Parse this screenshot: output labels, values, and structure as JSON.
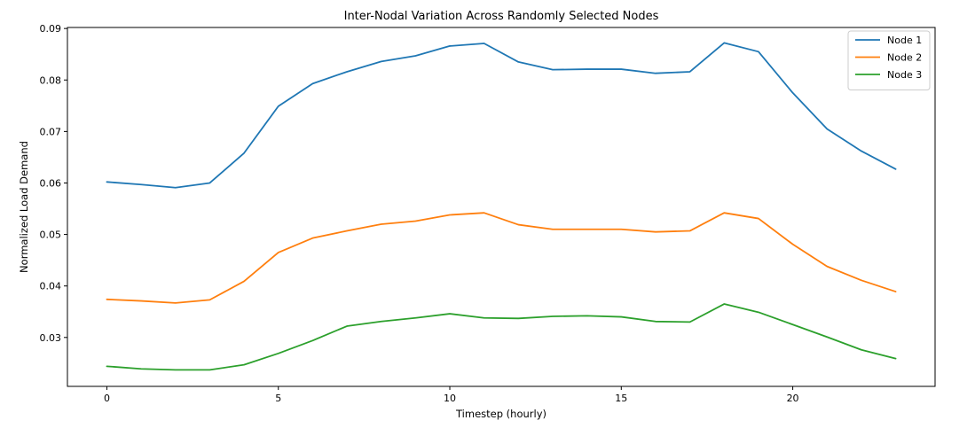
{
  "chart_data": {
    "type": "line",
    "title": "Inter-Nodal Variation Across Randomly Selected Nodes",
    "xlabel": "Timestep (hourly)",
    "ylabel": "Normalized Load Demand",
    "x": [
      0,
      1,
      2,
      3,
      4,
      5,
      6,
      7,
      8,
      9,
      10,
      11,
      12,
      13,
      14,
      15,
      16,
      17,
      18,
      19,
      20,
      21,
      22,
      23
    ],
    "xlim": [
      -1.15,
      24.15
    ],
    "ylim": [
      0.0205,
      0.0902
    ],
    "x_ticks": [
      0,
      5,
      10,
      15,
      20
    ],
    "y_ticks": [
      0.03,
      0.04,
      0.05,
      0.06,
      0.07,
      0.08,
      0.09
    ],
    "x_tick_labels": [
      "0",
      "5",
      "10",
      "15",
      "20"
    ],
    "y_tick_labels": [
      "0.03",
      "0.04",
      "0.05",
      "0.06",
      "0.07",
      "0.08",
      "0.09"
    ],
    "grid": false,
    "legend_position": "top-right",
    "series": [
      {
        "name": "Node 1",
        "color": "#1f77b4",
        "values": [
          0.0602,
          0.0597,
          0.0591,
          0.06,
          0.0658,
          0.0749,
          0.0793,
          0.0816,
          0.0836,
          0.0847,
          0.0866,
          0.0871,
          0.0835,
          0.082,
          0.0821,
          0.0821,
          0.0813,
          0.0816,
          0.0872,
          0.0855,
          0.0775,
          0.0705,
          0.0662,
          0.0627
        ]
      },
      {
        "name": "Node 2",
        "color": "#ff7f0e",
        "values": [
          0.0374,
          0.0371,
          0.0367,
          0.0373,
          0.0409,
          0.0465,
          0.0493,
          0.0507,
          0.052,
          0.0526,
          0.0538,
          0.0542,
          0.0519,
          0.051,
          0.051,
          0.051,
          0.0505,
          0.0507,
          0.0542,
          0.0531,
          0.0481,
          0.0438,
          0.0411,
          0.0389
        ]
      },
      {
        "name": "Node 3",
        "color": "#2ca02c",
        "values": [
          0.0244,
          0.0239,
          0.0237,
          0.0237,
          0.0247,
          0.0269,
          0.0294,
          0.0322,
          0.0331,
          0.0338,
          0.0346,
          0.0338,
          0.0337,
          0.0341,
          0.0342,
          0.034,
          0.0331,
          0.033,
          0.0365,
          0.0349,
          0.0325,
          0.0301,
          0.0276,
          0.0259
        ]
      }
    ]
  }
}
